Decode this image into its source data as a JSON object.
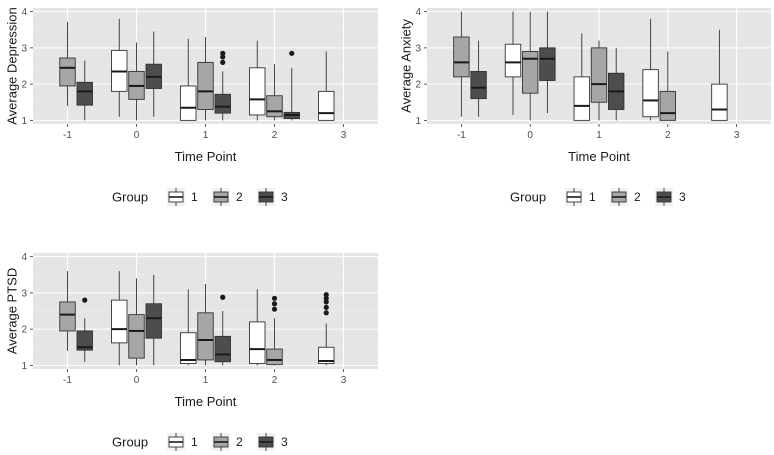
{
  "colors": {
    "panel_bg": "#e5e5e5",
    "grid_major": "#ffffff",
    "grid_minor": "#f0f0f0",
    "outline": "#333333",
    "group_fills": [
      "#ffffff",
      "#a6a6a6",
      "#4d4d4d"
    ]
  },
  "chart_data": [
    {
      "type": "boxplot",
      "ylabel": "Average Depression",
      "xlabel": "Time Point",
      "categories": [
        "-1",
        "0",
        "1",
        "2",
        "3"
      ],
      "ylim": [
        0.9,
        4.1
      ],
      "yticks": [
        "1",
        "2",
        "3",
        "4"
      ],
      "grid": true,
      "legend": {
        "title": "Group",
        "position": "bottom",
        "labels": [
          "1",
          "2",
          "3"
        ]
      },
      "series": [
        {
          "name": "1",
          "boxes": [
            null,
            {
              "cat": "0",
              "min": 1.1,
              "q1": 1.8,
              "median": 2.35,
              "q3": 2.93,
              "max": 3.8,
              "outliers": []
            },
            {
              "cat": "1",
              "min": 1.0,
              "q1": 1.0,
              "median": 1.35,
              "q3": 1.95,
              "max": 3.25,
              "outliers": []
            },
            {
              "cat": "2",
              "min": 1.0,
              "q1": 1.15,
              "median": 1.58,
              "q3": 2.45,
              "max": 3.2,
              "outliers": []
            },
            {
              "cat": "3",
              "min": 1.0,
              "q1": 1.0,
              "median": 1.2,
              "q3": 1.8,
              "max": 2.9,
              "outliers": []
            }
          ]
        },
        {
          "name": "2",
          "boxes": [
            {
              "cat": "-1",
              "min": 1.4,
              "q1": 1.95,
              "median": 2.45,
              "q3": 2.72,
              "max": 3.72,
              "outliers": []
            },
            {
              "cat": "0",
              "min": 1.0,
              "q1": 1.58,
              "median": 1.95,
              "q3": 2.35,
              "max": 3.15,
              "outliers": []
            },
            {
              "cat": "1",
              "min": 1.0,
              "q1": 1.3,
              "median": 1.8,
              "q3": 2.6,
              "max": 3.3,
              "outliers": []
            },
            {
              "cat": "2",
              "min": 1.0,
              "q1": 1.1,
              "median": 1.25,
              "q3": 1.68,
              "max": 2.55,
              "outliers": []
            },
            null
          ]
        },
        {
          "name": "3",
          "boxes": [
            {
              "cat": "-1",
              "min": 1.0,
              "q1": 1.42,
              "median": 1.8,
              "q3": 2.05,
              "max": 2.65,
              "outliers": []
            },
            {
              "cat": "0",
              "min": 1.1,
              "q1": 1.88,
              "median": 2.2,
              "q3": 2.55,
              "max": 3.45,
              "outliers": []
            },
            {
              "cat": "1",
              "min": 1.0,
              "q1": 1.2,
              "median": 1.38,
              "q3": 1.72,
              "max": 2.35,
              "outliers": [
                2.6,
                2.75,
                2.85
              ]
            },
            {
              "cat": "2",
              "min": 1.0,
              "q1": 1.05,
              "median": 1.15,
              "q3": 1.22,
              "max": 2.45,
              "outliers": [
                2.85
              ]
            },
            null
          ]
        }
      ]
    },
    {
      "type": "boxplot",
      "ylabel": "Average Anxiety",
      "xlabel": "Time Point",
      "categories": [
        "-1",
        "0",
        "1",
        "2",
        "3"
      ],
      "ylim": [
        0.9,
        4.1
      ],
      "yticks": [
        "1",
        "2",
        "3",
        "4"
      ],
      "grid": true,
      "legend": {
        "title": "Group",
        "position": "bottom",
        "labels": [
          "1",
          "2",
          "3"
        ]
      },
      "series": [
        {
          "name": "1",
          "boxes": [
            null,
            {
              "cat": "0",
              "min": 1.15,
              "q1": 2.2,
              "median": 2.6,
              "q3": 3.1,
              "max": 4.0,
              "outliers": []
            },
            {
              "cat": "1",
              "min": 1.0,
              "q1": 1.0,
              "median": 1.4,
              "q3": 2.2,
              "max": 3.4,
              "outliers": []
            },
            {
              "cat": "2",
              "min": 1.0,
              "q1": 1.1,
              "median": 1.55,
              "q3": 2.4,
              "max": 3.8,
              "outliers": []
            },
            {
              "cat": "3",
              "min": 1.0,
              "q1": 1.0,
              "median": 1.3,
              "q3": 2.0,
              "max": 3.5,
              "outliers": []
            }
          ]
        },
        {
          "name": "2",
          "boxes": [
            {
              "cat": "-1",
              "min": 1.1,
              "q1": 2.2,
              "median": 2.6,
              "q3": 3.3,
              "max": 4.0,
              "outliers": []
            },
            {
              "cat": "0",
              "min": 1.0,
              "q1": 1.75,
              "median": 2.7,
              "q3": 2.9,
              "max": 4.0,
              "outliers": []
            },
            {
              "cat": "1",
              "min": 1.0,
              "q1": 1.5,
              "median": 2.0,
              "q3": 3.0,
              "max": 3.2,
              "outliers": []
            },
            {
              "cat": "2",
              "min": 1.0,
              "q1": 1.0,
              "median": 1.2,
              "q3": 1.8,
              "max": 2.9,
              "outliers": []
            },
            null
          ]
        },
        {
          "name": "3",
          "boxes": [
            {
              "cat": "-1",
              "min": 1.1,
              "q1": 1.6,
              "median": 1.9,
              "q3": 2.35,
              "max": 3.2,
              "outliers": []
            },
            {
              "cat": "0",
              "min": 1.2,
              "q1": 2.1,
              "median": 2.7,
              "q3": 3.0,
              "max": 4.0,
              "outliers": []
            },
            {
              "cat": "1",
              "min": 1.0,
              "q1": 1.3,
              "median": 1.8,
              "q3": 2.3,
              "max": 3.0,
              "outliers": []
            },
            null,
            null
          ]
        }
      ]
    },
    {
      "type": "boxplot",
      "ylabel": "Average PTSD",
      "xlabel": "Time Point",
      "categories": [
        "-1",
        "0",
        "1",
        "2",
        "3"
      ],
      "ylim": [
        0.9,
        4.1
      ],
      "yticks": [
        "1",
        "2",
        "3",
        "4"
      ],
      "grid": true,
      "legend": {
        "title": "Group",
        "position": "bottom",
        "labels": [
          "1",
          "2",
          "3"
        ]
      },
      "series": [
        {
          "name": "1",
          "boxes": [
            null,
            {
              "cat": "0",
              "min": 1.0,
              "q1": 1.62,
              "median": 2.0,
              "q3": 2.8,
              "max": 3.6,
              "outliers": []
            },
            {
              "cat": "1",
              "min": 1.0,
              "q1": 1.05,
              "median": 1.15,
              "q3": 1.9,
              "max": 3.1,
              "outliers": []
            },
            {
              "cat": "2",
              "min": 1.0,
              "q1": 1.05,
              "median": 1.45,
              "q3": 2.2,
              "max": 3.1,
              "outliers": []
            },
            {
              "cat": "3",
              "min": 1.0,
              "q1": 1.05,
              "median": 1.12,
              "q3": 1.5,
              "max": 2.15,
              "outliers": [
                2.45,
                2.6,
                2.75,
                2.85,
                2.95
              ]
            }
          ]
        },
        {
          "name": "2",
          "boxes": [
            {
              "cat": "-1",
              "min": 1.4,
              "q1": 1.95,
              "median": 2.4,
              "q3": 2.75,
              "max": 3.6,
              "outliers": []
            },
            {
              "cat": "0",
              "min": 1.0,
              "q1": 1.2,
              "median": 1.95,
              "q3": 2.4,
              "max": 3.4,
              "outliers": []
            },
            {
              "cat": "1",
              "min": 1.0,
              "q1": 1.15,
              "median": 1.7,
              "q3": 2.45,
              "max": 3.25,
              "outliers": []
            },
            {
              "cat": "2",
              "min": 1.0,
              "q1": 1.02,
              "median": 1.15,
              "q3": 1.45,
              "max": 2.3,
              "outliers": [
                2.55,
                2.7,
                2.85
              ]
            },
            null
          ]
        },
        {
          "name": "3",
          "boxes": [
            {
              "cat": "-1",
              "min": 1.1,
              "q1": 1.42,
              "median": 1.5,
              "q3": 1.95,
              "max": 2.3,
              "outliers": [
                2.8
              ]
            },
            {
              "cat": "0",
              "min": 1.0,
              "q1": 1.75,
              "median": 2.3,
              "q3": 2.7,
              "max": 3.5,
              "outliers": []
            },
            {
              "cat": "1",
              "min": 1.0,
              "q1": 1.1,
              "median": 1.3,
              "q3": 1.8,
              "max": 2.5,
              "outliers": [
                2.88
              ]
            },
            null,
            null
          ]
        }
      ]
    }
  ]
}
